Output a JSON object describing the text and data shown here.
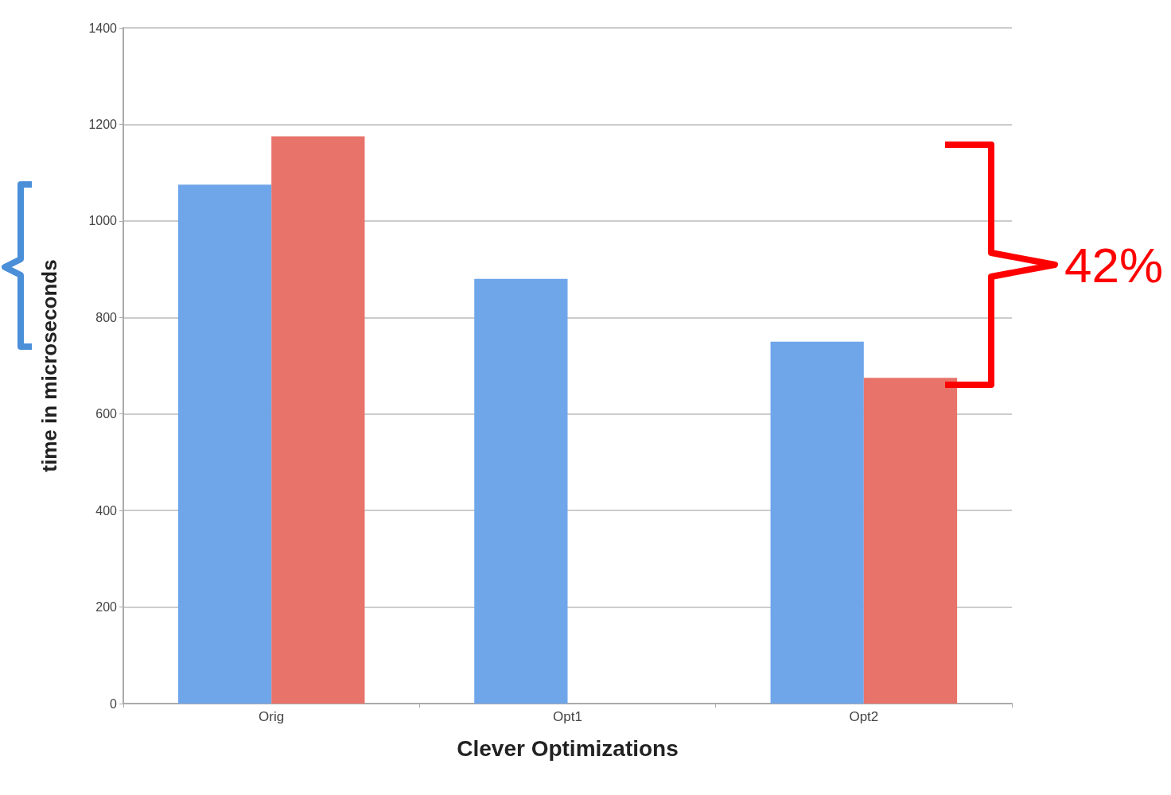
{
  "chart_data": {
    "type": "bar",
    "xlabel": "Clever Optimizations",
    "ylabel": "time in microseconds",
    "categories": [
      "Orig",
      "Opt1",
      "Opt2"
    ],
    "series": [
      {
        "color": "#6fa6ea",
        "values": [
          1075,
          880,
          750
        ]
      },
      {
        "color": "#e8736a",
        "values": [
          1175,
          null,
          675
        ]
      }
    ],
    "ylim": [
      0,
      1400
    ],
    "yticks": [
      0,
      200,
      400,
      600,
      800,
      1000,
      1200,
      1400
    ],
    "grid": "y",
    "annotations": [
      "42%"
    ]
  }
}
